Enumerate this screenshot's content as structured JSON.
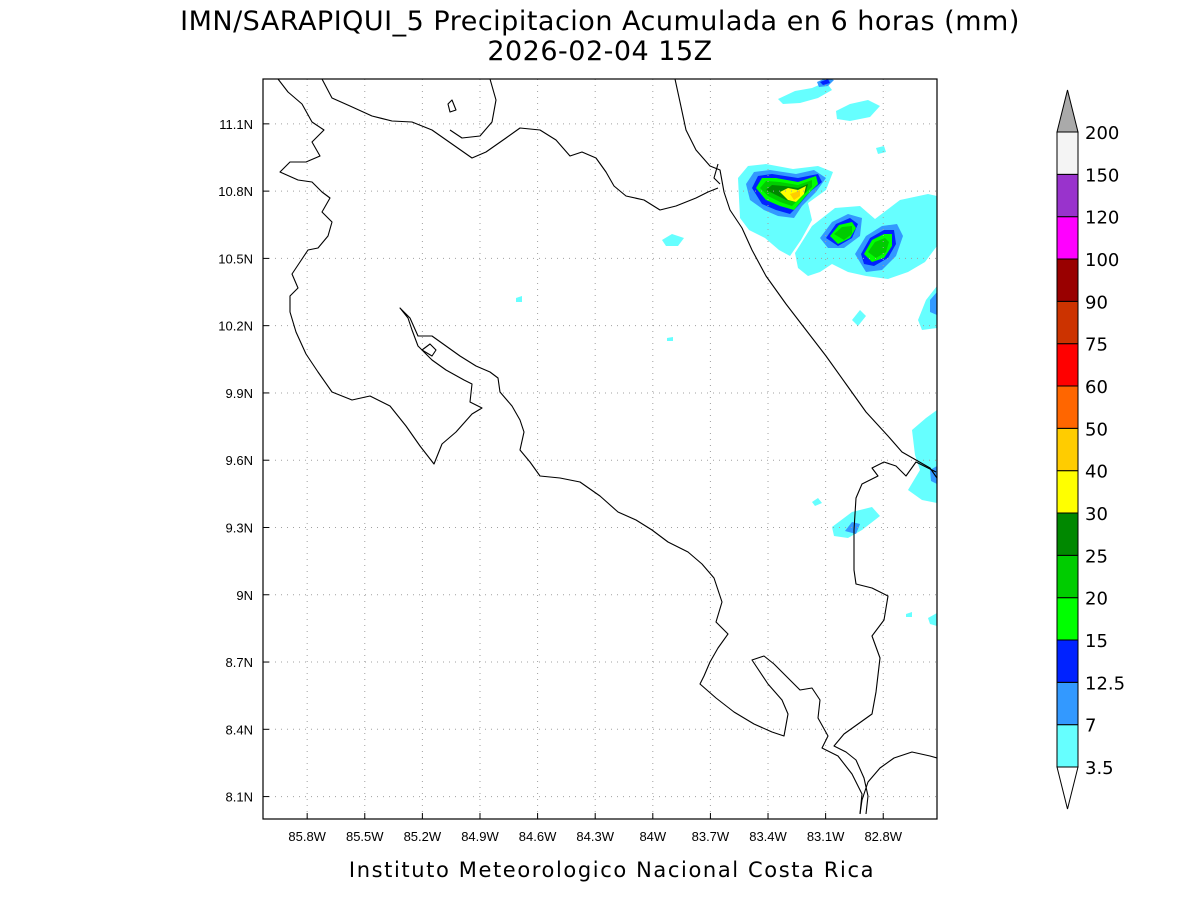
{
  "title": {
    "line1": "IMN/SARAPIQUI_5 Precipitacion Acumulada en 6 horas (mm)",
    "line2": "2026-02-04 15Z"
  },
  "footer": "Instituto Meteorologico Nacional Costa Rica",
  "map": {
    "lon_range": [
      -86.03,
      -82.52
    ],
    "lat_range": [
      8.0,
      11.3
    ],
    "lon_ticks": [
      {
        "value": -85.8,
        "label": "85.8W"
      },
      {
        "value": -85.5,
        "label": "85.5W"
      },
      {
        "value": -85.2,
        "label": "85.2W"
      },
      {
        "value": -84.9,
        "label": "84.9W"
      },
      {
        "value": -84.6,
        "label": "84.6W"
      },
      {
        "value": -84.3,
        "label": "84.3W"
      },
      {
        "value": -84.0,
        "label": "84W"
      },
      {
        "value": -83.7,
        "label": "83.7W"
      },
      {
        "value": -83.4,
        "label": "83.4W"
      },
      {
        "value": -83.1,
        "label": "83.1W"
      },
      {
        "value": -82.8,
        "label": "82.8W"
      }
    ],
    "lat_ticks": [
      {
        "value": 11.1,
        "label": "11.1N"
      },
      {
        "value": 10.8,
        "label": "10.8N"
      },
      {
        "value": 10.5,
        "label": "10.5N"
      },
      {
        "value": 10.2,
        "label": "10.2N"
      },
      {
        "value": 9.9,
        "label": "9.9N"
      },
      {
        "value": 9.6,
        "label": "9.6N"
      },
      {
        "value": 9.3,
        "label": "9.3N"
      },
      {
        "value": 9.0,
        "label": "9N"
      },
      {
        "value": 8.7,
        "label": "8.7N"
      },
      {
        "value": 8.4,
        "label": "8.4N"
      },
      {
        "value": 8.1,
        "label": "8.1N"
      }
    ],
    "grid": "dotted"
  },
  "colorbar": {
    "labels": [
      "3.5",
      "7",
      "12.5",
      "15",
      "20",
      "25",
      "30",
      "40",
      "50",
      "60",
      "75",
      "90",
      "100",
      "120",
      "150",
      "200"
    ],
    "colors": [
      "#66ffff",
      "#3399ff",
      "#0022ff",
      "#00ff00",
      "#00cc00",
      "#008800",
      "#ffff00",
      "#ffcc00",
      "#ff6600",
      "#ff0000",
      "#cc3300",
      "#990000",
      "#ff00ff",
      "#9933cc",
      "#f4f4f4"
    ],
    "over_color": "#aaaaaa",
    "under_color": "#ffffff"
  }
}
